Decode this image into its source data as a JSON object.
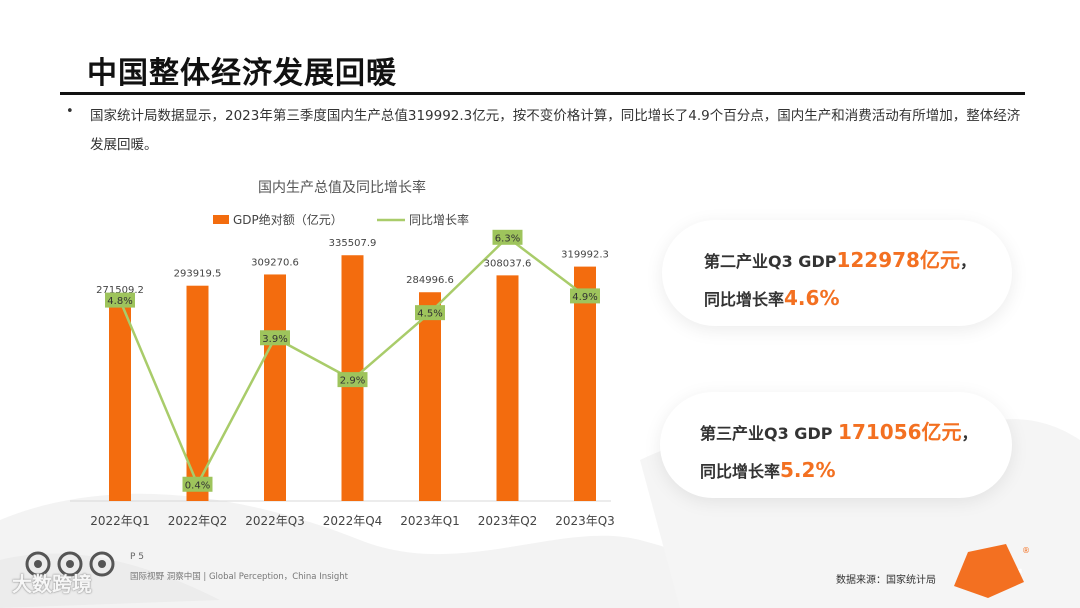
{
  "page": {
    "title": "中国整体经济发展回暖",
    "bullet": "•",
    "description": "国家统计局数据显示，2023年第三季度国内生产总值319992.3亿元，按不变价格计算，同比增长了4.9个百分点，国内生产和消费活动有所增加，整体经济发展回暖。"
  },
  "colors": {
    "bar": "#f36c0e",
    "line": "#a9cc6a",
    "label_bg": "#9ec45c",
    "accent": "#f37021"
  },
  "chart_data": {
    "type": "bar+line",
    "title": "国内生产总值及同比增长率",
    "legend": [
      "GDP绝对额（亿元）",
      "同比增长率"
    ],
    "legend_position": "top",
    "categories": [
      "2022年Q1",
      "2022年Q2",
      "2022年Q3",
      "2022年Q4",
      "2023年Q1",
      "2023年Q2",
      "2023年Q3"
    ],
    "gdp_values": [
      271509.2,
      293919.5,
      309270.6,
      335507.9,
      284996.6,
      308037.6,
      319992.3
    ],
    "gdp_labels": [
      "271509.2",
      "293919.5",
      "309270.6",
      "335507.9",
      "284996.6",
      "308037.6",
      "319992.3"
    ],
    "growth_values": [
      4.8,
      0.4,
      3.9,
      2.9,
      4.5,
      6.3,
      4.9
    ],
    "growth_labels": [
      "4.8%",
      "0.4%",
      "3.9%",
      "2.9%",
      "4.5%",
      "6.3%",
      "4.9%"
    ],
    "bar_ylim": [
      0,
      400000
    ],
    "line_ylim": [
      0,
      7
    ]
  },
  "cards": [
    {
      "prefix": "第二产业Q3 GDP",
      "value": "122978亿元",
      "suffix": "，",
      "rate_label": "同比增长率",
      "rate": "4.6%"
    },
    {
      "prefix": "第三产业Q3 GDP ",
      "value": "171056亿元",
      "suffix": "，",
      "rate_label": "同比增长率",
      "rate": "5.2%"
    }
  ],
  "footer": {
    "page": "P 5",
    "text": "国际视野  洞察中国 | Global Perception，China Insight",
    "source": "数据来源：国家统计局",
    "watermark": "大数跨境",
    "logo": "ctr",
    "reg": "®"
  }
}
